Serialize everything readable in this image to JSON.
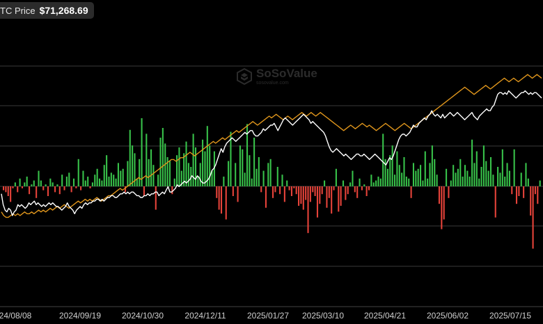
{
  "badge": {
    "label": "TC Price",
    "value": "$71,268.69"
  },
  "watermark": {
    "name": "SoSoValue",
    "url": "sosovalue.com"
  },
  "colors": {
    "background": "#000000",
    "inflow": "#38c24a",
    "outflow": "#e6433a",
    "btc_price_line": "#ffffff",
    "holdings_line": "#e0961c",
    "grid": "#3a3a3a"
  },
  "chart_data": {
    "type": "bar",
    "x_tick_labels": [
      "24/08/08",
      "2024/09/19",
      "2024/10/30",
      "2024/12/11",
      "2025/01/27",
      "2025/03/10",
      "2025/04/21",
      "2025/06/02",
      "2025/07/15"
    ],
    "series": [
      {
        "kind": "bar",
        "values": [
          -0.2,
          -0.3,
          -0.5,
          -0.8,
          -0.1,
          0.2,
          -0.3,
          0.4,
          -0.1,
          0.2,
          0.5,
          -0.4,
          0.1,
          0.3,
          -0.6,
          0.8,
          0.3,
          -0.2,
          0.1,
          -0.5,
          0.4,
          0.2,
          -0.3,
          0.1,
          -0.4,
          0.6,
          -0.2,
          0.5,
          0.7,
          -0.3,
          0.4,
          -0.1,
          1.4,
          -0.2,
          0.8,
          0.3,
          0.5,
          -0.1,
          0.2,
          0.6,
          0.9,
          0.4,
          0.3,
          1.1,
          1.6,
          0.5,
          0.7,
          0.6,
          0.4,
          1.2,
          0.8,
          0.9,
          -0.3,
          1.3,
          2.9,
          2.1,
          1.7,
          0.4,
          1.4,
          3.5,
          -0.5,
          2.7,
          1.4,
          1.9,
          1.1,
          -1.2,
          0.6,
          2.5,
          3.0,
          2.2,
          1.5,
          1.3,
          -0.4,
          0.4,
          1.6,
          2.0,
          0.8,
          1.7,
          2.3,
          1.2,
          1.0,
          2.7,
          2.0,
          0.5,
          1.2,
          2.4,
          1.8,
          3.1,
          2.1,
          0.8,
          1.8,
          -0.6,
          -1.2,
          -1.4,
          0.5,
          -1.7,
          1.3,
          2.8,
          -0.5,
          1.2,
          -0.8,
          2.1,
          1.9,
          0.7,
          3.2,
          1.6,
          0.4,
          2.5,
          0.9,
          1.5,
          -0.3,
          0.8,
          -1.1,
          1.2,
          1.4,
          -0.6,
          -0.3,
          1.0,
          -0.4,
          0.6,
          -0.8,
          0.3,
          -0.2,
          -0.5,
          -0.1,
          -0.4,
          -1.0,
          -0.9,
          -1.2,
          -0.7,
          -2.4,
          -0.8,
          -0.3,
          -0.5,
          -1.6,
          -0.9,
          -0.4,
          0.3,
          -1.1,
          -0.6,
          -1.4,
          -0.2,
          0.9,
          -1.3,
          -1.0,
          0.3,
          -0.7,
          -0.4,
          0.2,
          0.8,
          -0.3,
          -0.6,
          0.4,
          -0.2,
          0.1,
          -0.5,
          -0.2,
          0.6,
          0.2,
          0.3,
          0.5,
          0.4,
          2.7,
          1.4,
          0.9,
          1.6,
          2.1,
          0.6,
          1.8,
          1.1,
          0.7,
          1.5,
          0.5,
          0.4,
          -0.6,
          1.2,
          0.8,
          0.9,
          1.1,
          0.3,
          1.8,
          0.4,
          1.2,
          2.1,
          1.4,
          0.6,
          -0.9,
          -2.2,
          -1.7,
          0.9,
          -0.6,
          0.3,
          1.1,
          0.7,
          0.9,
          1.4,
          0.5,
          1.1,
          0.8,
          0.5,
          2.4,
          1.2,
          1.8,
          0.4,
          1.0,
          2.1,
          1.3,
          0.8,
          1.5,
          0.6,
          -1.6,
          1.0,
          0.7,
          1.9,
          0.5,
          1.2,
          0.8,
          -0.4,
          1.9,
          -0.9,
          -0.5,
          0.7,
          -0.6,
          1.2,
          0.4,
          -1.5,
          -3.2,
          -0.4,
          -0.9,
          0.3
        ]
      },
      {
        "kind": "line",
        "values": [
          62,
          56,
          53,
          52,
          54,
          53,
          50,
          52,
          53,
          56,
          55,
          56,
          55,
          54,
          55,
          57,
          56,
          57,
          58,
          56,
          57,
          56,
          55,
          56,
          55,
          56,
          57,
          56,
          57,
          56,
          55,
          55,
          54,
          53,
          54,
          55,
          57,
          55,
          54,
          53,
          51,
          53,
          54,
          55,
          54,
          56,
          57,
          56,
          57,
          57,
          58,
          58,
          59,
          59,
          58,
          59,
          58,
          59,
          60,
          60,
          61,
          61,
          60,
          60,
          61,
          62,
          62,
          63,
          62,
          63,
          62,
          63,
          63,
          62,
          61,
          61,
          60,
          60,
          61,
          61,
          62,
          61,
          62,
          62,
          63,
          63,
          61,
          62,
          63,
          62,
          64,
          66,
          63,
          63,
          64,
          65,
          67,
          66,
          67,
          68,
          69,
          68,
          69,
          70,
          72,
          71,
          70,
          72,
          71,
          69,
          68,
          68,
          69,
          70,
          72,
          75,
          76,
          78,
          81,
          84,
          87,
          85,
          88,
          90,
          91,
          92,
          93,
          92,
          91,
          92,
          93,
          94,
          95,
          96,
          95,
          96,
          97,
          97,
          95,
          94,
          94,
          95,
          96,
          98,
          97,
          98,
          99,
          100,
          100,
          101,
          99,
          97,
          99,
          101,
          103,
          104,
          103,
          102,
          101,
          100,
          101,
          102,
          103,
          104,
          105,
          106,
          105,
          104,
          103,
          101,
          102,
          101,
          100,
          99,
          98,
          97,
          96,
          94,
          91,
          88,
          86,
          85,
          86,
          87,
          86,
          85,
          84,
          83,
          84,
          83,
          82,
          81,
          82,
          83,
          84,
          84,
          83,
          83,
          84,
          83,
          82,
          81,
          82,
          83,
          84,
          83,
          82,
          81,
          80,
          79,
          78,
          80,
          82,
          81,
          83,
          86,
          89,
          92,
          94,
          95,
          95,
          94,
          95,
          96,
          98,
          100,
          99,
          99,
          101,
          102,
          103,
          104,
          103,
          105,
          106,
          108,
          106,
          105,
          106,
          105,
          104,
          106,
          104,
          105,
          106,
          107,
          106,
          105,
          106,
          107,
          106,
          105,
          104,
          103,
          104,
          105,
          106,
          107,
          105,
          104,
          103,
          105,
          106,
          107,
          108,
          109,
          108,
          108,
          110,
          111,
          114,
          117,
          118,
          118,
          117,
          118,
          117,
          119,
          118,
          117,
          116,
          115,
          116,
          117,
          118,
          118,
          119,
          118,
          117,
          118,
          117,
          118,
          118,
          117,
          116,
          115
        ]
      },
      {
        "kind": "line",
        "values": [
          52,
          50,
          49,
          49,
          50,
          51,
          50,
          51,
          50,
          51,
          52,
          51,
          51,
          52,
          51,
          52,
          53,
          52,
          53,
          52,
          53,
          54,
          53,
          54,
          55,
          54,
          55,
          56,
          55,
          54,
          55,
          56,
          57,
          58,
          57,
          58,
          59,
          58,
          59,
          58,
          59,
          60,
          59,
          58,
          59,
          60,
          61,
          61,
          62,
          63,
          64,
          65,
          64,
          65,
          66,
          67,
          68,
          69,
          70,
          71,
          70,
          71,
          72,
          71,
          72,
          73,
          74,
          75,
          76,
          77,
          78,
          79,
          80,
          81,
          81,
          80,
          81,
          82,
          82,
          83,
          84,
          85,
          84,
          83,
          84,
          85,
          86,
          87,
          88,
          89,
          90,
          91,
          90,
          91,
          92,
          93,
          92,
          93,
          94,
          95,
          96,
          97,
          96,
          97,
          98,
          99,
          100,
          101,
          102,
          101,
          100,
          101,
          102,
          103,
          104,
          105,
          104,
          105,
          106,
          105,
          104,
          103,
          104,
          105,
          104,
          103,
          104,
          105,
          106,
          107,
          106,
          105,
          106,
          107,
          106,
          105,
          106,
          107,
          106,
          105,
          104,
          103,
          102,
          101,
          100,
          99,
          98,
          97,
          98,
          99,
          100,
          99,
          98,
          99,
          100,
          101,
          100,
          99,
          100,
          99,
          98,
          97,
          98,
          99,
          100,
          101,
          100,
          99,
          98,
          97,
          98,
          99,
          100,
          101,
          100,
          99,
          98,
          99,
          100,
          101,
          102,
          103,
          104,
          105,
          106,
          107,
          108,
          109,
          110,
          111,
          112,
          113,
          114,
          115,
          116,
          117,
          118,
          119,
          120,
          121,
          120,
          119,
          118,
          117,
          118,
          119,
          120,
          121,
          122,
          121,
          120,
          121,
          122,
          123,
          124,
          125,
          126,
          125,
          124,
          125,
          126,
          125,
          124,
          125,
          126,
          127,
          128,
          127,
          126,
          127,
          128,
          127,
          126
        ]
      }
    ]
  }
}
